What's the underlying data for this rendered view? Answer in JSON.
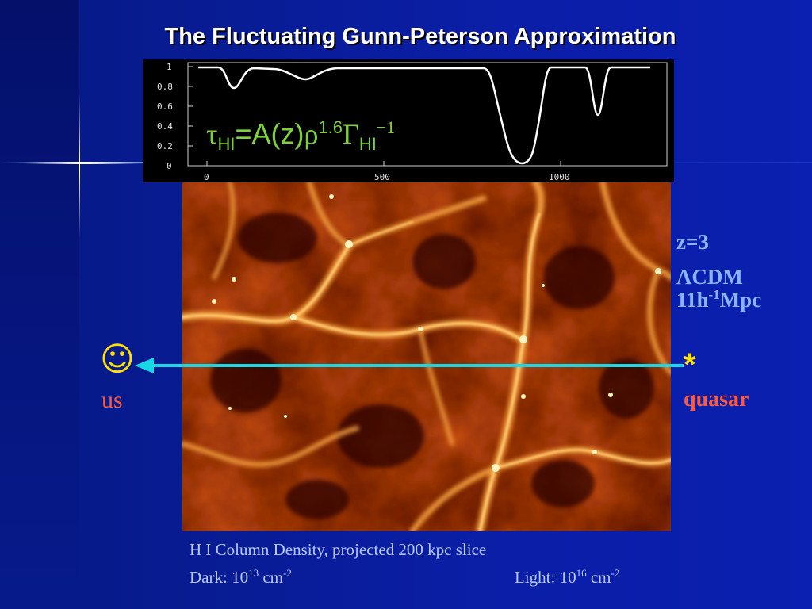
{
  "slide": {
    "title": "The Fluctuating Gunn-Peterson Approximation",
    "colors": {
      "background": "#0a1ea6",
      "title": "#ffffff",
      "formula": "#7ed13a",
      "label_blue": "#8ab4ff",
      "label_red": "#ff5a3c",
      "yellow": "#ffe000",
      "arrow": "#18d8e8",
      "caption": "#b9c8ff"
    }
  },
  "spectrum_plot": {
    "y_ticks": [
      "1",
      "0.8",
      "0.6",
      "0.4",
      "0.2",
      "0"
    ],
    "x_ticks": [
      "0",
      "500",
      "1000"
    ]
  },
  "formula": {
    "tau": "τ",
    "tau_sub": "HI",
    "eq": "=A(z)",
    "rho": "ρ",
    "rho_sup": "1.6",
    "gamma": "Γ",
    "gamma_sub": "HI",
    "gamma_sup": "−1"
  },
  "labels": {
    "redshift": "z=3",
    "cosmology_symbol": "Λ",
    "cosmology_rest": "CDM",
    "scale_base": "11h",
    "scale_sup": "-1",
    "scale_unit": "Mpc",
    "observer_icon": "☺",
    "observer": "us",
    "quasar_icon": "*",
    "quasar": "quasar"
  },
  "caption": {
    "line1": "H I Column Density, projected 200 kpc slice",
    "dark_label": "Dark: 10",
    "dark_exp": "13",
    "dark_unit": " cm",
    "dark_unit_exp": "-2",
    "light_label": "Light: 10",
    "light_exp": "16",
    "light_unit": " cm",
    "light_unit_exp": "-2"
  }
}
